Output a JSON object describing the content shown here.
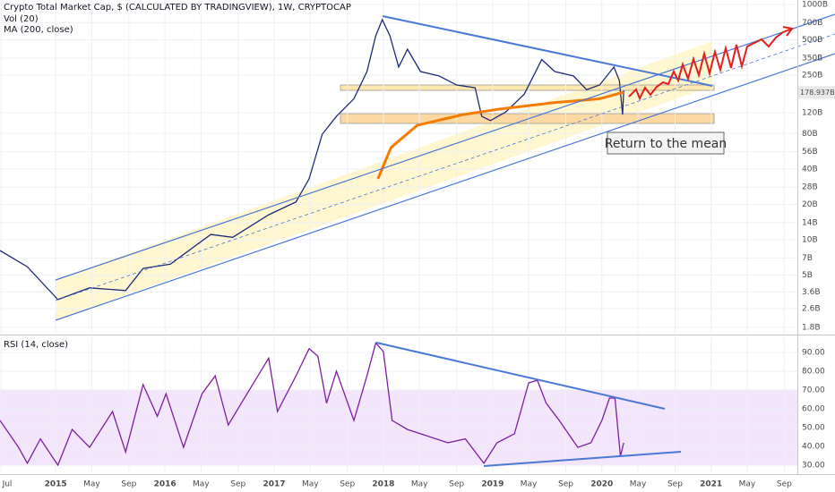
{
  "chart_data": [
    {
      "type": "line",
      "title": "Crypto Total Market Cap, $ (CALCULATED BY TRADINGVIEW), 1W, CRYPTOCAP",
      "subtitles": [
        "Vol (20)",
        "MA (200, close)"
      ],
      "annotation": "Return to the mean",
      "log_scale": true,
      "grid": true,
      "xlim": [
        2014.49,
        2021.79
      ],
      "ylim": [
        1.62,
        1092
      ],
      "yticks": [
        {
          "value": 1000,
          "label": "1000B"
        },
        {
          "value": 700,
          "label": "700B"
        },
        {
          "value": 500,
          "label": "500B"
        },
        {
          "value": 350,
          "label": "350B"
        },
        {
          "value": 250,
          "label": "250B"
        },
        {
          "value": 120,
          "label": "120B"
        },
        {
          "value": 80,
          "label": "80B"
        },
        {
          "value": 56,
          "label": "56B"
        },
        {
          "value": 40,
          "label": "40B"
        },
        {
          "value": 28,
          "label": "28B"
        },
        {
          "value": 20,
          "label": "20B"
        },
        {
          "value": 14,
          "label": "14B"
        },
        {
          "value": 10,
          "label": "10B"
        },
        {
          "value": 7,
          "label": "7B"
        },
        {
          "value": 5,
          "label": "5B"
        },
        {
          "value": 3.6,
          "label": "3.6B"
        },
        {
          "value": 2.6,
          "label": "2.6B"
        },
        {
          "value": 1.8,
          "label": "1.8B"
        }
      ],
      "last_price": {
        "value": 178.937,
        "label": "178.937B"
      },
      "series": [
        {
          "color": "#1e2a78",
          "x": [
            2014.49,
            2014.74,
            2015.02,
            2015.31,
            2015.64,
            2015.8,
            2016.05,
            2016.42,
            2016.62,
            2016.95,
            2017.2,
            2017.32,
            2017.44,
            2017.57,
            2017.73,
            2017.85,
            2017.93,
            2017.99,
            2018.06,
            2018.14,
            2018.22,
            2018.34,
            2018.51,
            2018.67,
            2018.84,
            2018.9,
            2018.98,
            2019.12,
            2019.29,
            2019.45,
            2019.57,
            2019.74,
            2019.86,
            2019.98,
            2020.11,
            2020.16,
            2020.19,
            2020.2
          ],
          "values": [
            8.1,
            5.9,
            3.1,
            3.9,
            3.7,
            5.7,
            6.2,
            11.1,
            10.5,
            16.3,
            21,
            33,
            79,
            112,
            158,
            269,
            542,
            743,
            542,
            294,
            417,
            269,
            247,
            207,
            196,
            112,
            103,
            122,
            173,
            340,
            269,
            247,
            189,
            207,
            294,
            226,
            116,
            186
          ]
        },
        {
          "color": "#f57c00",
          "x": [
            2017.95,
            2018.07,
            2018.31,
            2018.73,
            2019.06,
            2019.55,
            2019.98,
            2020.2
          ],
          "values": [
            33,
            61,
            94,
            116,
            129,
            146,
            158,
            180
          ]
        }
      ]
    },
    {
      "type": "line",
      "title": "RSI (14, close)",
      "grid": true,
      "xlim": [
        2014.49,
        2021.79
      ],
      "ylim": [
        26.2,
        98.1
      ],
      "yticks": [
        {
          "value": 90,
          "label": "90.00"
        },
        {
          "value": 80,
          "label": "80.00"
        },
        {
          "value": 70,
          "label": "70.00"
        },
        {
          "value": 60,
          "label": "60.00"
        },
        {
          "value": 50,
          "label": "50.00"
        },
        {
          "value": 40,
          "label": "40.00"
        },
        {
          "value": 30,
          "label": "30.00"
        }
      ],
      "band": [
        30,
        70
      ],
      "xticks": [
        {
          "value": 2014.5,
          "label": "Jul"
        },
        2015,
        {
          "value": 2015.33,
          "label": "May"
        },
        {
          "value": 2015.67,
          "label": "Sep"
        },
        2016,
        {
          "value": 2016.33,
          "label": "May"
        },
        {
          "value": 2016.67,
          "label": "Sep"
        },
        2017,
        {
          "value": 2017.33,
          "label": "May"
        },
        {
          "value": 2017.67,
          "label": "Sep"
        },
        2018,
        {
          "value": 2018.33,
          "label": "May"
        },
        {
          "value": 2018.67,
          "label": "Sep"
        },
        2019,
        {
          "value": 2019.33,
          "label": "May"
        },
        {
          "value": 2019.67,
          "label": "Sep"
        },
        2020,
        {
          "value": 2020.33,
          "label": "May"
        },
        {
          "value": 2020.67,
          "label": "Sep"
        },
        2021,
        {
          "value": 2021.33,
          "label": "May"
        },
        {
          "value": 2021.67,
          "label": "Sep"
        }
      ],
      "series": [
        {
          "color": "#7b1fa2",
          "x": [
            2014.49,
            2014.66,
            2014.74,
            2014.86,
            2015.02,
            2015.15,
            2015.31,
            2015.52,
            2015.64,
            2015.8,
            2015.93,
            2016.01,
            2016.17,
            2016.34,
            2016.46,
            2016.58,
            2016.7,
            2016.95,
            2017.03,
            2017.2,
            2017.32,
            2017.4,
            2017.48,
            2017.57,
            2017.73,
            2017.85,
            2017.93,
            2018.0,
            2018.08,
            2018.22,
            2018.34,
            2018.59,
            2018.75,
            2018.92,
            2019.04,
            2019.2,
            2019.33,
            2019.41,
            2019.49,
            2019.61,
            2019.78,
            2019.9,
            2020.0,
            2020.07,
            2020.12,
            2020.17,
            2020.2
          ],
          "values": [
            53.8,
            39.5,
            31,
            44,
            30,
            49,
            39.5,
            58.6,
            37,
            72.9,
            56,
            68,
            39.5,
            68,
            77.6,
            51.4,
            63,
            87,
            58.6,
            77.6,
            92,
            88,
            63,
            80,
            53.8,
            77.6,
            95,
            90.5,
            53.8,
            49,
            46.7,
            41.9,
            44,
            31,
            41.9,
            46.7,
            73.8,
            75.2,
            63,
            53.8,
            39.5,
            41.9,
            53.8,
            65.7,
            65.7,
            34.8,
            41.9
          ]
        }
      ]
    }
  ]
}
